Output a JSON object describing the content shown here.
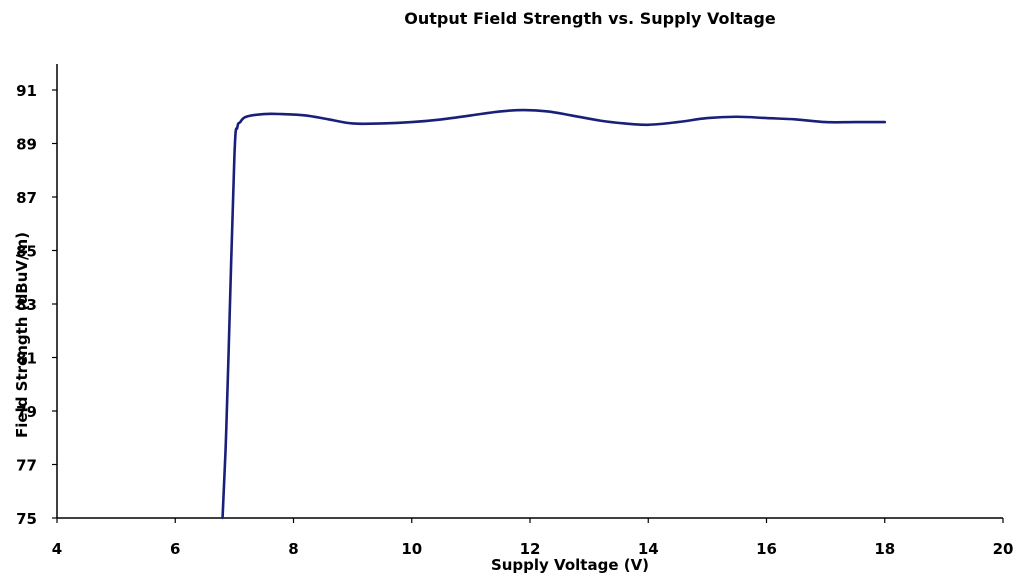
{
  "chart_data": {
    "type": "line",
    "title": "Output Field Strength vs. Supply Voltage",
    "xlabel": "Supply Voltage (V)",
    "ylabel": "Field Strength (dBuV/m)",
    "xlim": [
      4,
      20
    ],
    "ylim": [
      75,
      92
    ],
    "x_ticks": [
      4,
      6,
      8,
      10,
      12,
      14,
      16,
      18,
      20
    ],
    "y_ticks": [
      75,
      77,
      79,
      81,
      83,
      85,
      87,
      89,
      91
    ],
    "y_tick_labels": [
      "75",
      "77",
      "79",
      "81",
      "83",
      "85",
      "87",
      "89",
      "91"
    ],
    "grid": false,
    "legend": "none",
    "series": [
      {
        "color": "#1a1f7a",
        "x": [
          6.8,
          6.85,
          6.9,
          7.0,
          7.05,
          7.1,
          7.2,
          7.5,
          7.8,
          8.2,
          8.6,
          9.0,
          9.5,
          10.0,
          10.5,
          11.0,
          11.5,
          11.9,
          12.3,
          12.7,
          13.2,
          13.6,
          14.0,
          14.5,
          15.0,
          15.5,
          16.0,
          16.5,
          17.0,
          17.5,
          18.0
        ],
        "y": [
          75.0,
          77.5,
          81.0,
          88.5,
          89.6,
          89.8,
          90.0,
          90.1,
          90.1,
          90.05,
          89.9,
          89.75,
          89.75,
          89.8,
          89.9,
          90.05,
          90.2,
          90.25,
          90.2,
          90.05,
          89.85,
          89.75,
          89.7,
          89.8,
          89.95,
          90.0,
          89.95,
          89.9,
          89.8,
          89.8,
          89.8
        ]
      }
    ]
  }
}
